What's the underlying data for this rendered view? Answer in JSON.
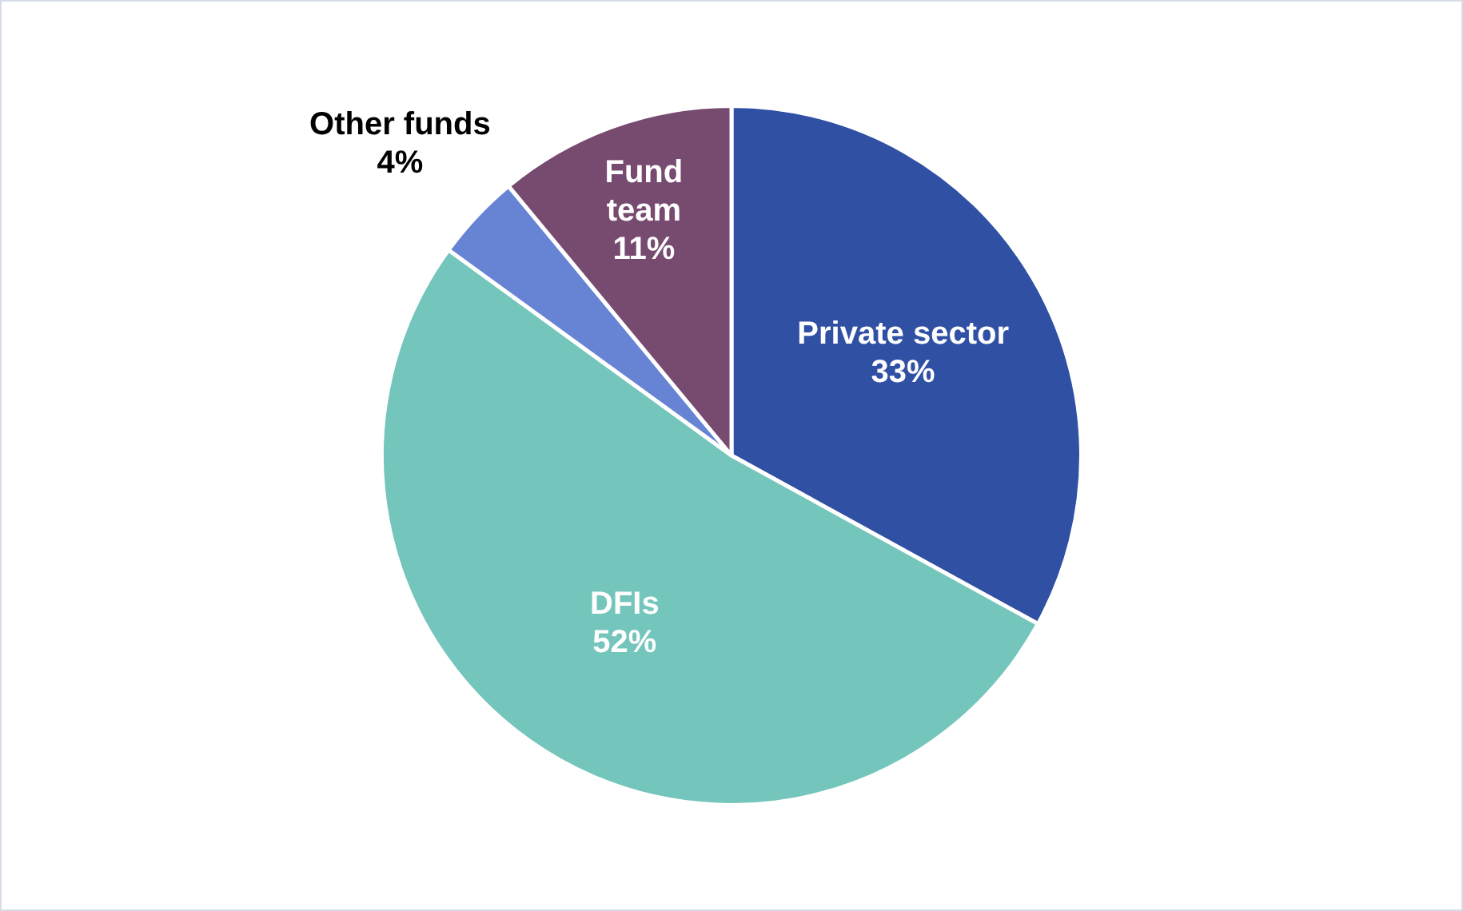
{
  "chart_data": {
    "type": "pie",
    "categories": [
      "Private sector",
      "DFIs",
      "Other funds",
      "Fund team"
    ],
    "values": [
      33,
      52,
      4,
      11
    ],
    "colors": [
      "#3050a4",
      "#74c5bb",
      "#6784d4",
      "#774a70"
    ],
    "value_labels": [
      "33%",
      "52%",
      "4%",
      "11%"
    ],
    "legend": false
  }
}
